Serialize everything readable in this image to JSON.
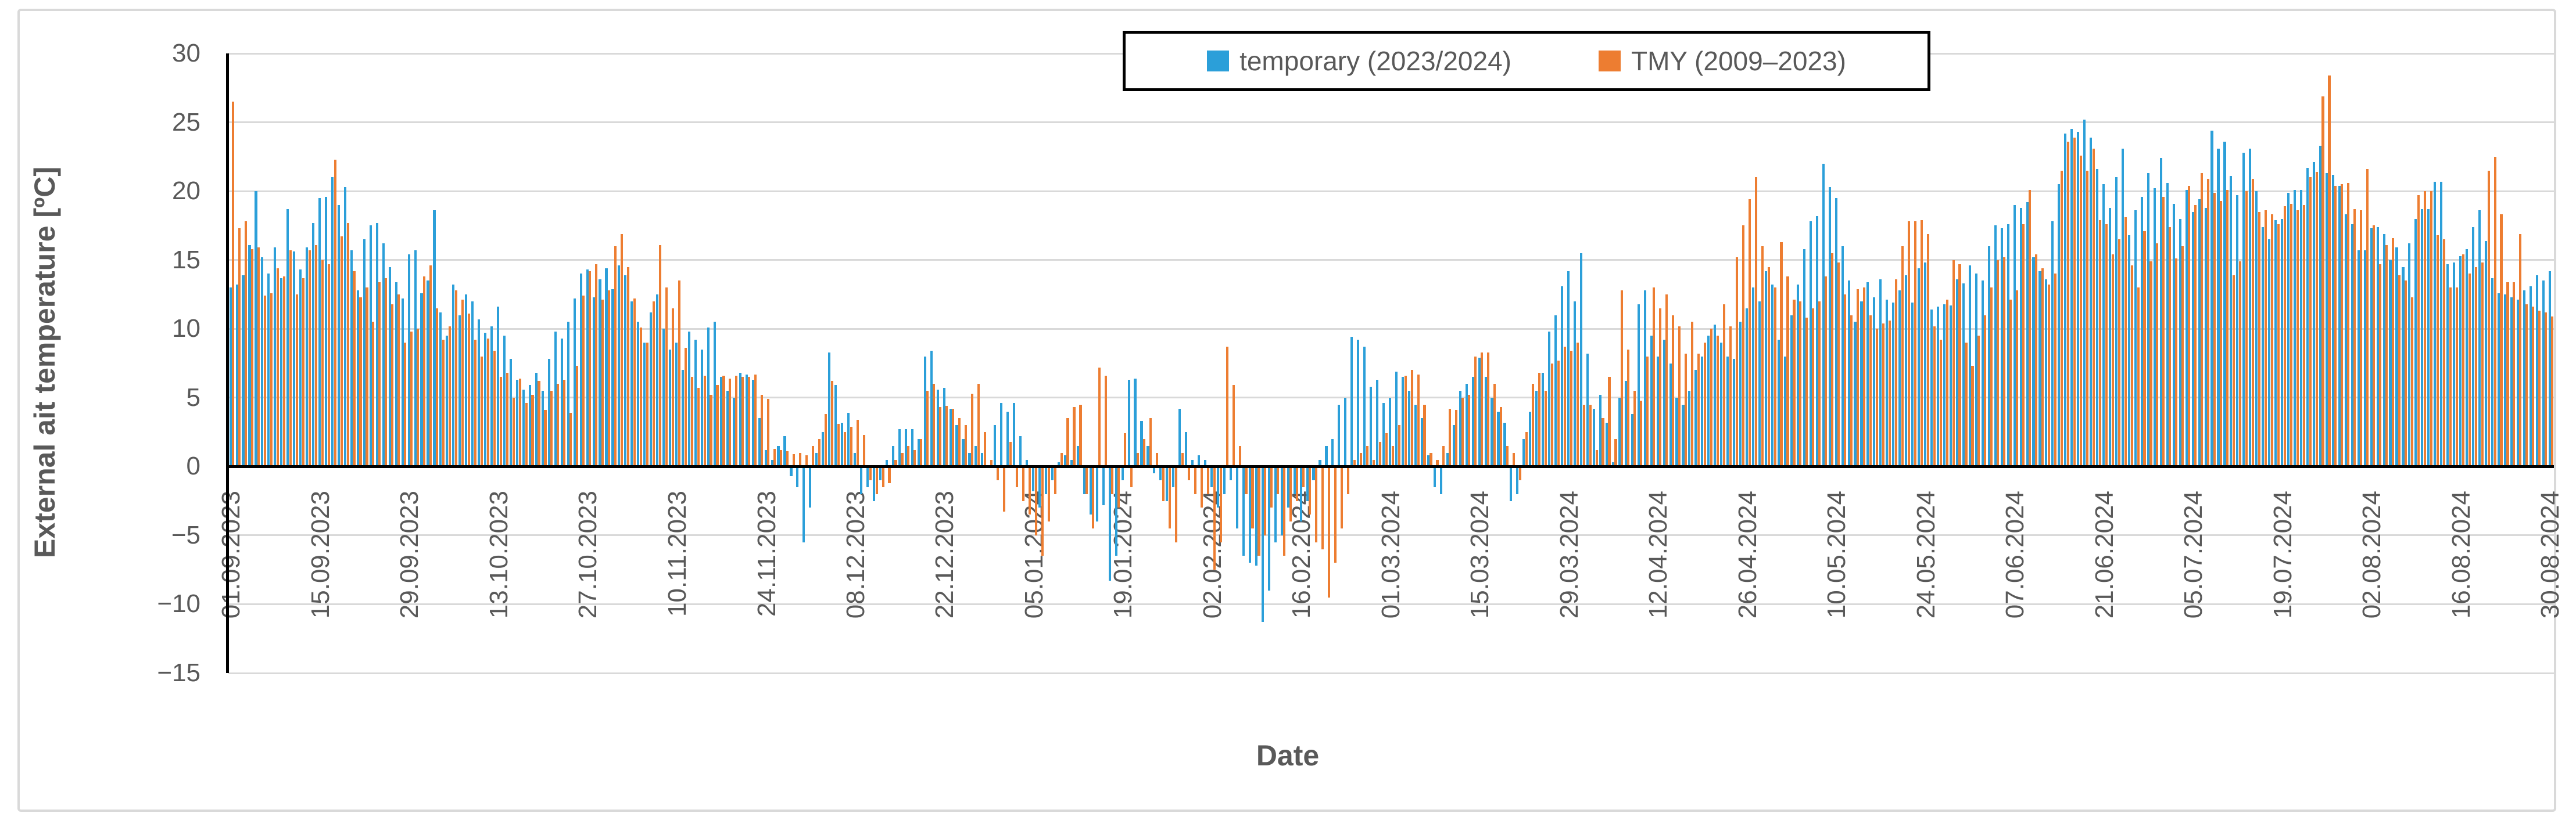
{
  "chart": {
    "y_axis_title": "External ait temperature [ºC]",
    "x_axis_title": "Date"
  },
  "chart_data": {
    "type": "bar",
    "title": "",
    "xlabel": "Date",
    "ylabel": "External ait temperature [ºC]",
    "ylim": [
      -15,
      30
    ],
    "grid": true,
    "legend_position": "top-center",
    "y_ticks": [
      30,
      25,
      20,
      15,
      10,
      5,
      0,
      -5,
      -10,
      -15
    ],
    "y_tick_labels": [
      "30",
      "25",
      "20",
      "15",
      "10",
      "5",
      "0",
      "−5",
      "−10",
      "−15"
    ],
    "x_tick_interval_days": 14,
    "x_tick_labels": [
      "01.09.2023",
      "15.09.2023",
      "29.09.2023",
      "13.10.2023",
      "27.10.2023",
      "10.11.2023",
      "24.11.2023",
      "08.12.2023",
      "22.12.2023",
      "05.01.2024",
      "19.01.2024",
      "02.02.2024",
      "16.02.2024",
      "01.03.2024",
      "15.03.2024",
      "29.03.2024",
      "12.04.2024",
      "26.04.2024",
      "10.05.2024",
      "24.05.2024",
      "07.06.2024",
      "21.06.2024",
      "05.07.2024",
      "19.07.2024",
      "02.08.2024",
      "16.08.2024",
      "30.08.2024"
    ],
    "n_days": 365,
    "series": [
      {
        "name": "temporary (2023/2024)",
        "color": "#2B9FD9",
        "values": [
          13,
          13.2,
          13.9,
          16.1,
          20,
          15.2,
          14,
          15.9,
          13.7,
          18.7,
          15.6,
          14.3,
          15.9,
          17.7,
          19.5,
          19.6,
          21,
          19,
          20.3,
          15.7,
          12.8,
          16.5,
          17.5,
          17.7,
          16.2,
          14.5,
          13.4,
          12.2,
          15.4,
          15.7,
          12.6,
          13.5,
          18.6,
          11.2,
          9.5,
          13.2,
          11,
          12.5,
          12,
          10.7,
          9.7,
          10.2,
          11.6,
          9.5,
          7.8,
          6.3,
          5.6,
          5.9,
          6.8,
          5.5,
          7.8,
          9.8,
          9.3,
          10.5,
          12.2,
          14,
          14.3,
          12.3,
          13.6,
          14.4,
          12.9,
          14.6,
          13.9,
          12,
          10.5,
          9,
          11.2,
          12.5,
          10,
          8.5,
          9,
          7,
          9.8,
          9.2,
          8.5,
          10.1,
          10.5,
          6.5,
          5.5,
          5,
          6.8,
          6.7,
          6.3,
          3.5,
          1.2,
          0.5,
          1.5,
          2.2,
          -0.7,
          -1.5,
          -5.5,
          -3,
          1,
          2.5,
          8.3,
          5.9,
          3.2,
          3.9,
          1,
          -2,
          -1.5,
          -2.5,
          -1,
          0.5,
          1.5,
          2.7,
          2.7,
          2.7,
          2,
          8,
          8.4,
          5.6,
          5.7,
          4.2,
          3,
          2,
          1,
          1.5,
          1,
          0,
          3,
          4.6,
          4,
          4.6,
          2.2,
          0.5,
          -1.8,
          -3,
          -2,
          -1,
          0.3,
          0.8,
          0.5,
          1.5,
          -2,
          -3.5,
          -4,
          -2.8,
          -8.3,
          -6.5,
          -1,
          6.3,
          6.4,
          3.3,
          1.5,
          -0.5,
          -1,
          -2.5,
          -1.5,
          4.2,
          2.5,
          0.5,
          0.8,
          0.5,
          -1.5,
          -3,
          -2,
          -1,
          -4.5,
          -6.5,
          -7,
          -7.2,
          -11.3,
          -9,
          -5.5,
          -5,
          -3,
          -2,
          -4,
          -2.5,
          -1,
          0.5,
          1.5,
          2,
          4.5,
          5,
          9.4,
          9.2,
          8.7,
          5.8,
          6.3,
          4.6,
          5,
          6.9,
          6.5,
          5.5,
          4.5,
          3.5,
          0.8,
          -1.5,
          -2,
          1,
          3,
          5.5,
          6,
          6.5,
          7.9,
          6.5,
          5,
          4,
          3.2,
          -2.5,
          -2,
          2,
          4,
          5.5,
          6.8,
          9.8,
          11,
          13.1,
          14.2,
          12,
          15.5,
          8.2,
          4.2,
          5.2,
          3.2,
          0.3,
          5,
          6.2,
          3.8,
          11.8,
          12.8,
          9.5,
          8,
          9.2,
          7.5,
          5,
          4.5,
          5.5,
          7,
          8,
          9.5,
          10.3,
          9,
          8,
          7.8,
          10.5,
          11.5,
          13,
          12,
          14.2,
          13.2,
          9.2,
          8,
          11,
          13.2,
          15.8,
          17.8,
          18.2,
          22,
          20.3,
          19.5,
          16,
          13.5,
          10.5,
          12,
          13.4,
          12.3,
          13.6,
          12.1,
          11.9,
          12.8,
          13.9,
          11.9,
          14.4,
          14.8,
          11.4,
          11.6,
          11.8,
          11.7,
          13.6,
          13.3,
          14.6,
          14,
          13.5,
          16,
          17.5,
          17.3,
          17.6,
          19,
          18.8,
          19.2,
          15.2,
          14.2,
          13.6,
          17.8,
          20.5,
          24.2,
          24.5,
          24.3,
          25.2,
          23.9,
          21.6,
          20.5,
          18.8,
          21,
          23.1,
          16.8,
          18.6,
          19.6,
          21.3,
          20.2,
          22.4,
          20.6,
          19.1,
          18,
          20.1,
          18.5,
          19.4,
          18.8,
          24.4,
          23.1,
          23.6,
          21.1,
          19.7,
          22.8,
          23.1,
          20,
          17.4,
          16.5,
          17.9,
          18,
          19.9,
          20.1,
          20.1,
          21.7,
          22.1,
          23.3,
          21.3,
          21.2,
          20.4,
          18.3,
          17.6,
          15.7,
          15.7,
          17.3,
          17.4,
          16.9,
          15,
          15.9,
          14.5,
          16.2,
          18,
          18.7,
          18.7,
          20.7,
          20.7,
          14.7,
          14.8,
          15.3,
          15.8,
          17.4,
          18.6,
          16.4,
          13.7,
          12.6,
          12.5,
          12.3,
          12.1,
          12.8,
          13.1,
          13.9,
          13.5,
          14.2
        ]
      },
      {
        "name": "TMY (2009–2023)",
        "color": "#ED7D31",
        "values": [
          26.5,
          17.3,
          17.8,
          15.8,
          15.9,
          12.4,
          12.6,
          14.4,
          13.8,
          15.7,
          12.5,
          13.7,
          15.7,
          16.1,
          15,
          14.7,
          22.3,
          16.7,
          17.7,
          14.2,
          12.3,
          13,
          10.5,
          13.4,
          13.7,
          11.8,
          12.5,
          9,
          9.8,
          10,
          13.8,
          14.6,
          11.5,
          9.2,
          10.2,
          12.8,
          12.1,
          11.1,
          9.2,
          8,
          9.3,
          8.4,
          6.5,
          6.8,
          5,
          6.4,
          4.6,
          5.2,
          6.2,
          4.1,
          5.5,
          6,
          6.3,
          3.9,
          7.3,
          12.4,
          14.2,
          14.7,
          12.1,
          12.8,
          16,
          16.9,
          14.5,
          12.2,
          10.1,
          9,
          12,
          16.1,
          13,
          11.5,
          13.5,
          8.6,
          6.5,
          5.7,
          6.6,
          5.2,
          5.9,
          6.6,
          6.4,
          6.6,
          6.5,
          6.5,
          6.7,
          5.2,
          4.9,
          1.3,
          1.2,
          1.1,
          0.9,
          1,
          0.8,
          1.5,
          2,
          3.8,
          6.2,
          3.1,
          2.5,
          2.9,
          3.4,
          2.3,
          -1,
          -2,
          -1.5,
          -1.2,
          0.5,
          1,
          1.5,
          1.2,
          2,
          5.5,
          6,
          4.3,
          4.4,
          4.2,
          3.5,
          3,
          5.3,
          6,
          2.5,
          0.5,
          -1,
          -3.3,
          1.8,
          -1.5,
          -2.5,
          -3.5,
          -5,
          -6.5,
          -4,
          -2,
          1,
          3.5,
          4.3,
          4.5,
          -2,
          -4.5,
          7.2,
          6.6,
          -2,
          -3,
          2.4,
          -1.5,
          1,
          2,
          3.5,
          1,
          -2.5,
          -4.5,
          -5.5,
          1,
          -1,
          -2,
          -3,
          -2,
          -7.5,
          -5.5,
          8.7,
          5.9,
          1.5,
          -2,
          -4.5,
          -6.5,
          -5,
          -3,
          -2,
          -6.5,
          -4,
          -2.5,
          -1.5,
          -3.5,
          -5.5,
          -6,
          -9.5,
          -7,
          -4.5,
          -2,
          0.5,
          1,
          1.5,
          0.5,
          1.8,
          2.4,
          1.5,
          3,
          6.6,
          7,
          6.7,
          4.5,
          1,
          0.5,
          1.5,
          4.2,
          4.1,
          5,
          5.2,
          8,
          8.3,
          8.3,
          6,
          4.3,
          1.5,
          1,
          -1,
          2.5,
          6,
          6.8,
          5.5,
          7.5,
          7.7,
          8.7,
          8.4,
          9,
          4.5,
          4.5,
          1.2,
          3.5,
          6.5,
          2,
          12.8,
          8.5,
          5.5,
          4.8,
          8,
          13,
          11.5,
          12.5,
          11,
          10.2,
          8.2,
          10.5,
          8.2,
          9,
          10,
          9.5,
          11.8,
          10.2,
          15.2,
          17.5,
          19.4,
          21,
          16,
          14.5,
          13,
          16.3,
          13.8,
          12.1,
          12,
          10.8,
          11.5,
          12,
          13.8,
          15.5,
          14.8,
          12.5,
          11,
          12.9,
          13,
          11,
          10,
          10.4,
          10.6,
          13.6,
          16,
          17.8,
          17.8,
          17.9,
          16.9,
          10.2,
          9.2,
          12.1,
          15,
          14.7,
          9,
          7.3,
          9.5,
          11,
          13,
          15,
          15.2,
          12.1,
          12.8,
          17.6,
          20.1,
          15.4,
          14.4,
          13.2,
          14,
          21.5,
          23.6,
          23.9,
          22.6,
          21.5,
          23.1,
          17.9,
          17.6,
          15.4,
          16.5,
          18.1,
          14.6,
          13,
          17.1,
          14.9,
          16.2,
          19.6,
          17.4,
          15.1,
          16,
          20.4,
          19,
          21.3,
          20.9,
          19.9,
          19.3,
          20.1,
          13.9,
          14.9,
          20,
          20.9,
          18.5,
          18.6,
          18.3,
          17.6,
          18.9,
          19.1,
          18.6,
          19,
          21,
          21.4,
          26.9,
          28.4,
          20.4,
          20.5,
          20.6,
          18.7,
          18.6,
          21.6,
          17.5,
          14.7,
          16.1,
          16.6,
          13.9,
          13.5,
          12.3,
          19.7,
          20,
          20,
          16.8,
          16.5,
          13,
          13,
          15.4,
          14,
          14.5,
          14.8,
          21.5,
          22.5,
          18.3,
          13.4,
          13.4,
          16.9,
          11.8,
          11.6,
          11.3,
          11.2,
          10.9
        ]
      }
    ]
  }
}
